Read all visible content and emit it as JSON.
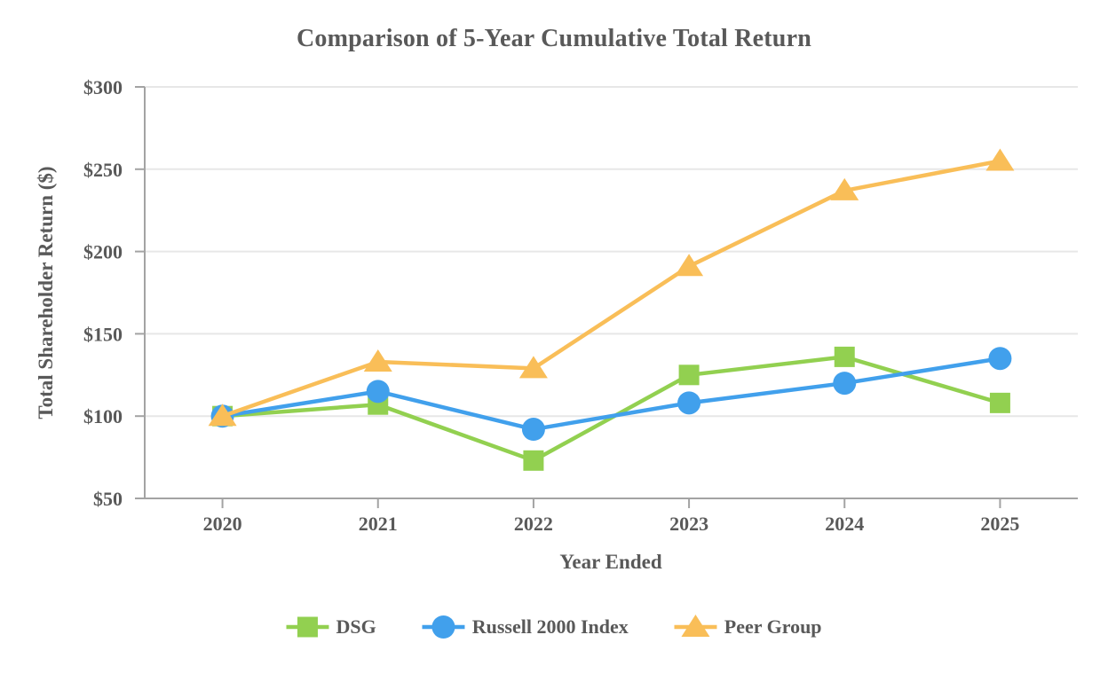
{
  "chart_data": {
    "type": "line",
    "title": "Comparison of 5-Year Cumulative Total Return",
    "xlabel": "Year Ended",
    "ylabel": "Total Shareholder Return ($)",
    "categories": [
      "2020",
      "2021",
      "2022",
      "2023",
      "2024",
      "2025"
    ],
    "series": [
      {
        "name": "DSG",
        "color": "#92D050",
        "marker": "square",
        "values": [
          100,
          107,
          73,
          125,
          136,
          108
        ]
      },
      {
        "name": "Russell 2000 Index",
        "color": "#41A0EC",
        "marker": "circle",
        "values": [
          100,
          115,
          92,
          108,
          120,
          135
        ]
      },
      {
        "name": "Peer Group",
        "color": "#F9BE58",
        "marker": "triangle",
        "values": [
          100,
          133,
          129,
          191,
          237,
          255
        ]
      }
    ],
    "ylim": [
      50,
      300
    ],
    "ytick_step": 50,
    "ytick_prefix": "$",
    "grid": "horizontal",
    "legend_position": "bottom"
  },
  "colors": {
    "text": "#595959",
    "gridline": "#E7E7E7",
    "axis": "#A3A3A3",
    "background": "#FFFFFF"
  }
}
